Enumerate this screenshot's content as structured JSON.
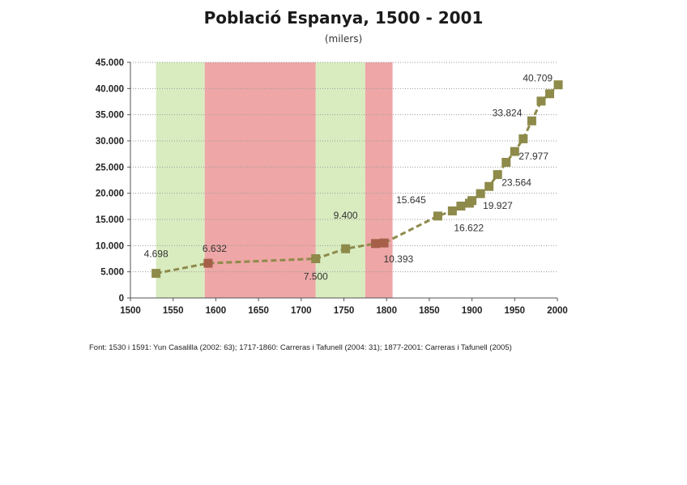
{
  "chart_data": {
    "type": "line",
    "title": "Població Espanya, 1500 - 2001",
    "subtitle": "(milers)",
    "xlabel": "",
    "ylabel": "",
    "xlim": [
      1500,
      2000
    ],
    "ylim": [
      0,
      45000
    ],
    "x_ticks": [
      "1500",
      "1550",
      "1600",
      "1650",
      "1700",
      "1750",
      "1800",
      "1850",
      "1900",
      "1950",
      "2000"
    ],
    "y_ticks": [
      "0",
      "5.000",
      "10.000",
      "15.000",
      "20.000",
      "25.000",
      "30.000",
      "35.000",
      "40.000",
      "45.000"
    ],
    "grid": true,
    "bands": [
      {
        "from": 1530,
        "to": 1587,
        "color": "#d9ecc0"
      },
      {
        "from": 1587,
        "to": 1717,
        "color": "#eea6a6"
      },
      {
        "from": 1717,
        "to": 1775,
        "color": "#d9ecc0"
      },
      {
        "from": 1775,
        "to": 1807,
        "color": "#eea6a6"
      }
    ],
    "series": [
      {
        "color": "#8e8a4a",
        "x": [
          1530,
          1591,
          1717,
          1752,
          1787,
          1797,
          1860,
          1877,
          1887,
          1897,
          1900,
          1910,
          1920,
          1930,
          1940,
          1950,
          1960,
          1970,
          1981,
          1991,
          2001
        ],
        "y": [
          4698,
          6632,
          7500,
          9400,
          10393,
          10500,
          15645,
          16622,
          17550,
          18100,
          18600,
          19927,
          21300,
          23564,
          25900,
          27977,
          30400,
          33824,
          37600,
          39000,
          40709
        ],
        "marker_colors": [
          "#8e8a4a",
          "#a6604a",
          "#8e8a4a",
          "#8e8a4a",
          "#a6604a",
          "#a6604a",
          "#8e8a4a",
          "#8e8a4a",
          "#8e8a4a",
          "#8e8a4a",
          "#8e8a4a",
          "#8e8a4a",
          "#8e8a4a",
          "#8e8a4a",
          "#8e8a4a",
          "#8e8a4a",
          "#8e8a4a",
          "#8e8a4a",
          "#8e8a4a",
          "#8e8a4a",
          "#8e8a4a"
        ]
      }
    ],
    "data_labels": [
      {
        "x": 1530,
        "y": 4698,
        "text": "4.698"
      },
      {
        "x": 1591,
        "y": 6632,
        "text": "6.632"
      },
      {
        "x": 1717,
        "y": 7500,
        "text": "7.500"
      },
      {
        "x": 1752,
        "y": 9400,
        "text": "9.400"
      },
      {
        "x": 1787,
        "y": 10393,
        "text": "10.393"
      },
      {
        "x": 1860,
        "y": 15645,
        "text": "15.645"
      },
      {
        "x": 1877,
        "y": 16622,
        "text": "16.622"
      },
      {
        "x": 1910,
        "y": 19927,
        "text": "19.927"
      },
      {
        "x": 1930,
        "y": 23564,
        "text": "23.564"
      },
      {
        "x": 1950,
        "y": 27977,
        "text": "27.977"
      },
      {
        "x": 1970,
        "y": 33824,
        "text": "33.824"
      },
      {
        "x": 2001,
        "y": 40709,
        "text": "40.709"
      }
    ]
  },
  "source_note": "Font: 1530 i 1591: Yun Casalilla (2002: 63); 1717-1860: Carreras i Tafunell (2004: 31); 1877-2001: Carreras i Tafunell (2005)"
}
